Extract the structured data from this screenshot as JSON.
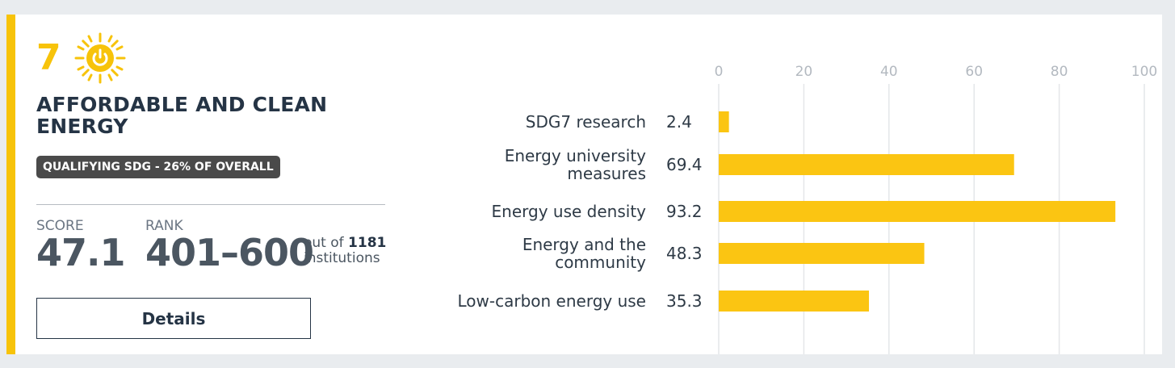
{
  "sdg": {
    "number": "7",
    "icon": "sun-power-icon",
    "title": "AFFORDABLE AND CLEAN ENERGY",
    "badge": "QUALIFYING SDG - 26% OF OVERALL",
    "score_label": "SCORE",
    "score_value": "47.1",
    "rank_label": "RANK",
    "rank_value": "401–600",
    "out_of_prefix": "out of",
    "out_of_count": "1181",
    "out_of_suffix": "institutions",
    "details_label": "Details"
  },
  "colors": {
    "accent": "#f7c30a",
    "bar": "#fbc512",
    "text": "#253445"
  },
  "chart_data": {
    "type": "bar",
    "orientation": "horizontal",
    "categories": [
      "SDG7 research",
      "Energy university measures",
      "Energy use density",
      "Energy and the community",
      "Low-carbon energy use"
    ],
    "category_lines": [
      [
        "SDG7 research"
      ],
      [
        "Energy university",
        "measures"
      ],
      [
        "Energy use density"
      ],
      [
        "Energy and the",
        "community"
      ],
      [
        "Low-carbon energy use"
      ]
    ],
    "values": [
      2.4,
      69.4,
      93.2,
      48.3,
      35.3
    ],
    "value_labels": [
      "2.4",
      "69.4",
      "93.2",
      "48.3",
      "35.3"
    ],
    "xlim": [
      0,
      100
    ],
    "ticks": [
      0,
      20,
      40,
      60,
      80,
      100
    ],
    "tick_position": "top",
    "grid": true
  }
}
